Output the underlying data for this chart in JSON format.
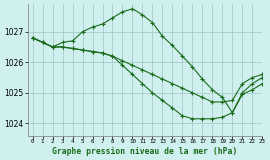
{
  "title": "Graphe pression niveau de la mer (hPa)",
  "background_color": "#cff0ee",
  "grid_color": "#aacccc",
  "line_color": "#1a6b1a",
  "xlim": [
    -0.5,
    23
  ],
  "ylim": [
    1023.6,
    1027.9
  ],
  "yticks": [
    1024,
    1025,
    1026,
    1027
  ],
  "xticks": [
    0,
    1,
    2,
    3,
    4,
    5,
    6,
    7,
    8,
    9,
    10,
    11,
    12,
    13,
    14,
    15,
    16,
    17,
    18,
    19,
    20,
    21,
    22,
    23
  ],
  "series": [
    {
      "x": [
        0,
        1,
        2,
        3,
        4,
        5,
        6,
        7,
        8,
        9,
        10,
        11,
        12,
        13,
        14,
        15,
        16,
        17,
        18,
        19,
        20,
        21,
        22,
        23
      ],
      "y": [
        1026.8,
        1026.65,
        1026.5,
        1026.5,
        1026.45,
        1026.4,
        1026.35,
        1026.3,
        1026.2,
        1026.05,
        1025.9,
        1025.75,
        1025.6,
        1025.45,
        1025.3,
        1025.15,
        1025.0,
        1024.85,
        1024.7,
        1024.7,
        1024.75,
        1025.3,
        1025.5,
        1025.6
      ]
    },
    {
      "x": [
        0,
        1,
        2,
        3,
        4,
        5,
        6,
        7,
        8,
        9,
        10,
        11,
        12,
        13,
        14,
        15,
        16,
        17,
        18,
        19,
        20,
        21,
        22,
        23
      ],
      "y": [
        1026.8,
        1026.65,
        1026.5,
        1026.5,
        1026.45,
        1026.4,
        1026.35,
        1026.3,
        1026.2,
        1025.9,
        1025.6,
        1025.3,
        1025.0,
        1024.75,
        1024.5,
        1024.25,
        1024.15,
        1024.15,
        1024.15,
        1024.2,
        1024.35,
        1025.0,
        1025.3,
        1025.5
      ]
    },
    {
      "x": [
        0,
        1,
        2,
        3,
        4,
        5,
        6,
        7,
        8,
        9,
        10,
        11,
        12,
        13,
        14,
        15,
        16,
        17,
        18,
        19,
        20,
        21,
        22,
        23
      ],
      "y": [
        1026.8,
        1026.65,
        1026.5,
        1026.65,
        1026.7,
        1027.0,
        1027.15,
        1027.25,
        1027.45,
        1027.65,
        1027.75,
        1027.55,
        1027.3,
        1026.85,
        1026.55,
        1026.2,
        1025.85,
        1025.45,
        1025.1,
        1024.85,
        1024.35,
        1024.95,
        1025.1,
        1025.3
      ]
    }
  ]
}
